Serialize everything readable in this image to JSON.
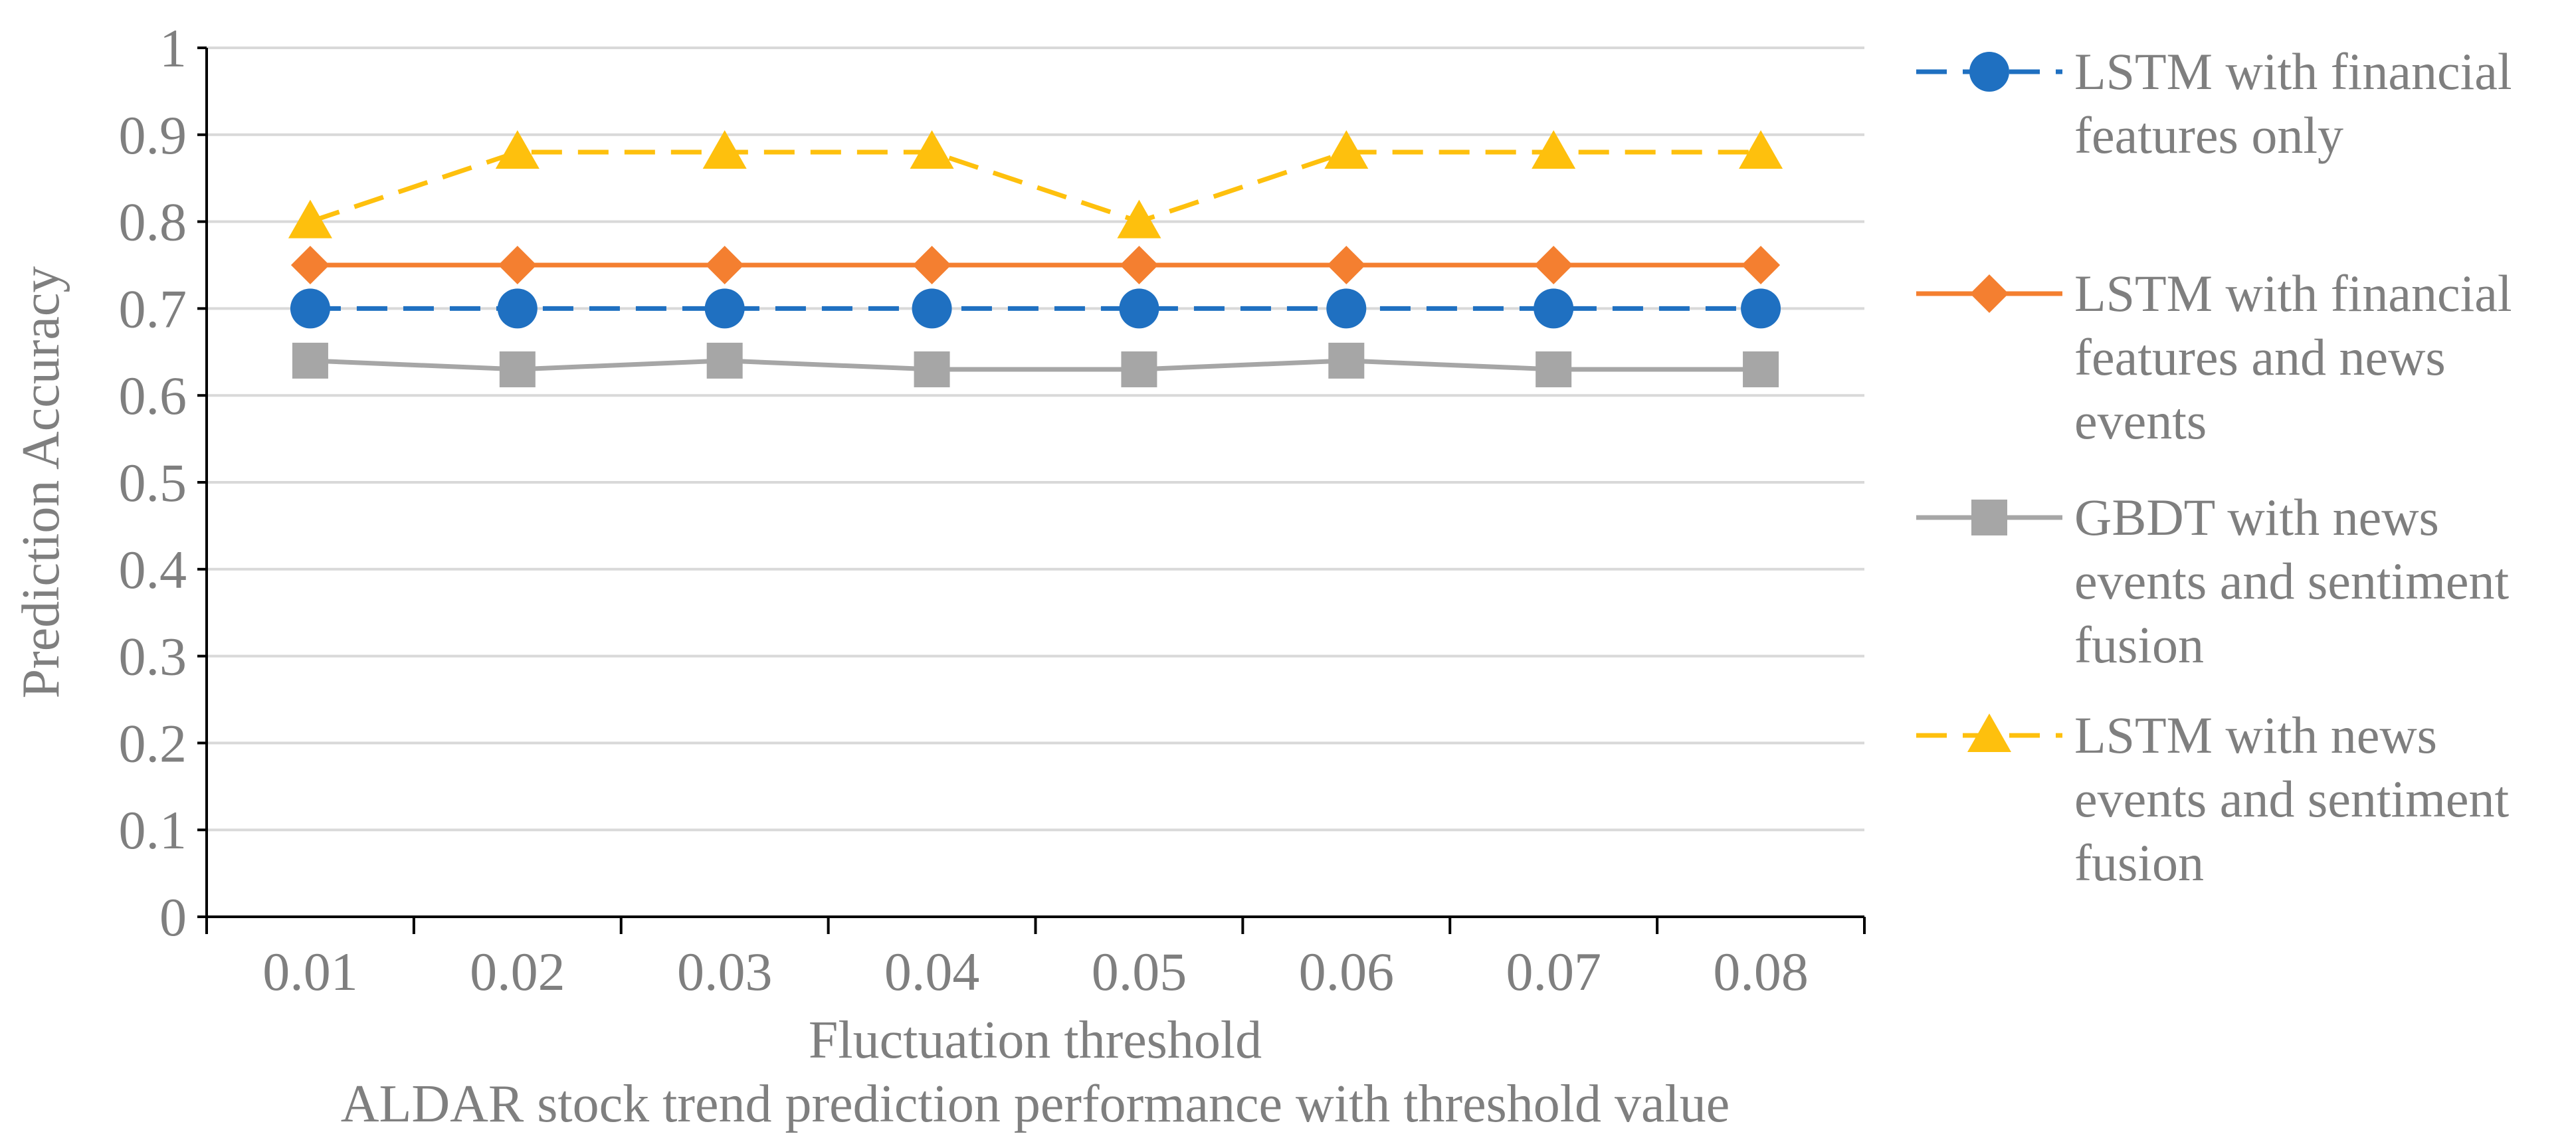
{
  "chart_data": {
    "type": "line",
    "title": "ALDAR stock trend prediction performance with threshold value",
    "xlabel": "Fluctuation threshold",
    "ylabel": "Prediction Accuracy",
    "categories": [
      "0.01",
      "0.02",
      "0.03",
      "0.04",
      "0.05",
      "0.06",
      "0.07",
      "0.08"
    ],
    "ylim": [
      0,
      1
    ],
    "yticks": [
      "0",
      "0.1",
      "0.2",
      "0.3",
      "0.4",
      "0.5",
      "0.6",
      "0.7",
      "0.8",
      "0.9",
      "1"
    ],
    "grid": true,
    "legend_position": "right",
    "series": [
      {
        "name": "LSTM with financial features only",
        "legend_lines": [
          "LSTM with financial",
          "features only"
        ],
        "values": [
          0.7,
          0.7,
          0.7,
          0.7,
          0.7,
          0.7,
          0.7,
          0.7
        ],
        "color": "#1f70c1",
        "marker": "circle",
        "dashed": true
      },
      {
        "name": "LSTM with financial features and news events",
        "legend_lines": [
          "LSTM with financial",
          "features and news",
          "events"
        ],
        "values": [
          0.75,
          0.75,
          0.75,
          0.75,
          0.75,
          0.75,
          0.75,
          0.75
        ],
        "color": "#f47f30",
        "marker": "diamond",
        "dashed": false
      },
      {
        "name": "GBDT with news events and sentiment fusion",
        "legend_lines": [
          "GBDT with news",
          "events and sentiment",
          "fusion"
        ],
        "values": [
          0.64,
          0.63,
          0.64,
          0.63,
          0.63,
          0.64,
          0.63,
          0.63
        ],
        "color": "#a6a6a6",
        "marker": "square",
        "dashed": false
      },
      {
        "name": "LSTM with news events and sentiment fusion",
        "legend_lines": [
          "LSTM with news",
          "events and sentiment",
          "fusion"
        ],
        "values": [
          0.8,
          0.88,
          0.88,
          0.88,
          0.8,
          0.88,
          0.88,
          0.88
        ],
        "color": "#fec00d",
        "marker": "triangle",
        "dashed": true
      }
    ]
  }
}
